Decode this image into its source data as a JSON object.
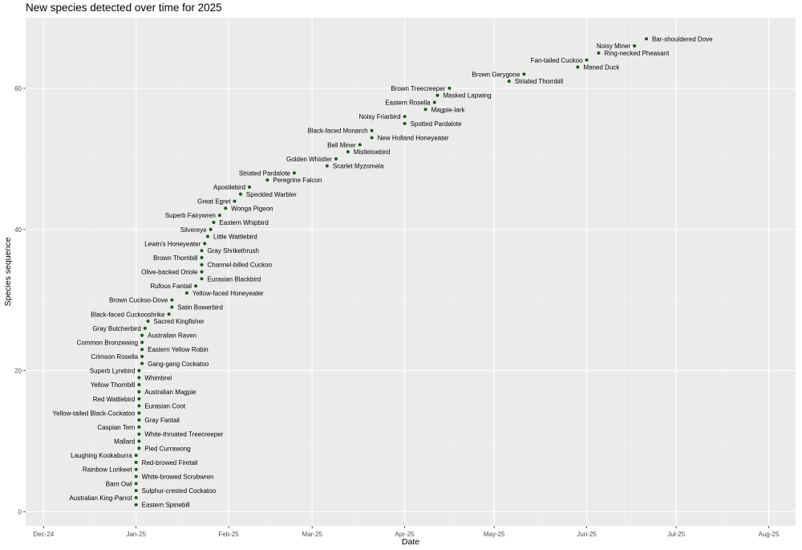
{
  "chart_data": {
    "type": "scatter",
    "title": "New species detected over time for 2025",
    "xlabel": "Date",
    "ylabel": "Species sequence",
    "x_ticks": [
      "Dec-24",
      "Jan-25",
      "Feb-25",
      "Mar-25",
      "Apr-25",
      "May-25",
      "Jun-25",
      "Jul-25",
      "Aug-25"
    ],
    "x_tick_dates": [
      "2024-12-01",
      "2025-01-01",
      "2025-02-01",
      "2025-03-01",
      "2025-04-01",
      "2025-05-01",
      "2025-06-01",
      "2025-07-01",
      "2025-08-01"
    ],
    "xlim": [
      "2024-11-25",
      "2025-08-10"
    ],
    "y_ticks": [
      0,
      20,
      40,
      60
    ],
    "ylim": [
      -2,
      70
    ],
    "grid": true,
    "point_color": "#1a5a1a",
    "panel_color": "#ebebeb",
    "points": [
      {
        "date": "2025-01-01",
        "y": 1,
        "label": "Eastern Spinebill"
      },
      {
        "date": "2025-01-01",
        "y": 2,
        "label": "Australian King-Parrot"
      },
      {
        "date": "2025-01-01",
        "y": 3,
        "label": "Sulphur-crested Cockatoo"
      },
      {
        "date": "2025-01-01",
        "y": 4,
        "label": "Barn Owl"
      },
      {
        "date": "2025-01-01",
        "y": 5,
        "label": "White-browed Scrubwren"
      },
      {
        "date": "2025-01-01",
        "y": 6,
        "label": "Rainbow Lorikeet"
      },
      {
        "date": "2025-01-01",
        "y": 7,
        "label": "Red-browed Firetail"
      },
      {
        "date": "2025-01-01",
        "y": 8,
        "label": "Laughing Kookaburra"
      },
      {
        "date": "2025-01-02",
        "y": 9,
        "label": "Pied Currawong"
      },
      {
        "date": "2025-01-02",
        "y": 10,
        "label": "Mallard"
      },
      {
        "date": "2025-01-02",
        "y": 11,
        "label": "White-throated Treecreeper"
      },
      {
        "date": "2025-01-02",
        "y": 12,
        "label": "Caspian Tern"
      },
      {
        "date": "2025-01-02",
        "y": 13,
        "label": "Gray Fantail"
      },
      {
        "date": "2025-01-02",
        "y": 14,
        "label": "Yellow-tailed Black-Cockatoo"
      },
      {
        "date": "2025-01-02",
        "y": 15,
        "label": "Eurasian Coot"
      },
      {
        "date": "2025-01-02",
        "y": 16,
        "label": "Red Wattlebird"
      },
      {
        "date": "2025-01-02",
        "y": 17,
        "label": "Australian Magpie"
      },
      {
        "date": "2025-01-02",
        "y": 18,
        "label": "Yellow Thornbill"
      },
      {
        "date": "2025-01-02",
        "y": 19,
        "label": "Whimbrel"
      },
      {
        "date": "2025-01-02",
        "y": 20,
        "label": "Superb Lyrebird"
      },
      {
        "date": "2025-01-03",
        "y": 21,
        "label": "Gang-gang Cockatoo"
      },
      {
        "date": "2025-01-03",
        "y": 22,
        "label": "Crimson Rosella"
      },
      {
        "date": "2025-01-03",
        "y": 23,
        "label": "Eastern Yellow Robin"
      },
      {
        "date": "2025-01-03",
        "y": 24,
        "label": "Common Bronzewing"
      },
      {
        "date": "2025-01-03",
        "y": 25,
        "label": "Australian Raven"
      },
      {
        "date": "2025-01-04",
        "y": 26,
        "label": "Gray Butcherbird"
      },
      {
        "date": "2025-01-05",
        "y": 27,
        "label": "Sacred Kingfisher"
      },
      {
        "date": "2025-01-12",
        "y": 28,
        "label": "Black-faced Cuckooshrike"
      },
      {
        "date": "2025-01-13",
        "y": 29,
        "label": "Satin Bowerbird"
      },
      {
        "date": "2025-01-13",
        "y": 30,
        "label": "Brown Cuckoo-Dove"
      },
      {
        "date": "2025-01-18",
        "y": 31,
        "label": "Yellow-faced Honeyeater"
      },
      {
        "date": "2025-01-21",
        "y": 32,
        "label": "Rufous Fantail"
      },
      {
        "date": "2025-01-23",
        "y": 33,
        "label": "Eurasian Blackbird"
      },
      {
        "date": "2025-01-23",
        "y": 34,
        "label": "Olive-backed Oriole"
      },
      {
        "date": "2025-01-23",
        "y": 35,
        "label": "Channel-billed Cuckoo"
      },
      {
        "date": "2025-01-23",
        "y": 36,
        "label": "Brown Thornbill"
      },
      {
        "date": "2025-01-23",
        "y": 37,
        "label": "Gray Shrikethrush"
      },
      {
        "date": "2025-01-24",
        "y": 38,
        "label": "Lewin's Honeyeater"
      },
      {
        "date": "2025-01-25",
        "y": 39,
        "label": "Little Wattlebird"
      },
      {
        "date": "2025-01-26",
        "y": 40,
        "label": "Silvereye"
      },
      {
        "date": "2025-01-27",
        "y": 41,
        "label": "Eastern Whipbird"
      },
      {
        "date": "2025-01-29",
        "y": 42,
        "label": "Superb Fairywren"
      },
      {
        "date": "2025-01-31",
        "y": 43,
        "label": "Wonga Pigeon"
      },
      {
        "date": "2025-02-03",
        "y": 44,
        "label": "Great Egret"
      },
      {
        "date": "2025-02-05",
        "y": 45,
        "label": "Speckled Warbler"
      },
      {
        "date": "2025-02-08",
        "y": 46,
        "label": "Apostlebird"
      },
      {
        "date": "2025-02-14",
        "y": 47,
        "label": "Peregrine Falcon"
      },
      {
        "date": "2025-02-23",
        "y": 48,
        "label": "Striated Pardalote"
      },
      {
        "date": "2025-03-06",
        "y": 49,
        "label": "Scarlet Myzomela"
      },
      {
        "date": "2025-03-09",
        "y": 50,
        "label": "Golden Whistler"
      },
      {
        "date": "2025-03-13",
        "y": 51,
        "label": "Mistletoebird"
      },
      {
        "date": "2025-03-17",
        "y": 52,
        "label": "Bell Miner"
      },
      {
        "date": "2025-03-21",
        "y": 53,
        "label": "New Holland Honeyeater"
      },
      {
        "date": "2025-03-21",
        "y": 54,
        "label": "Black-faced Monarch"
      },
      {
        "date": "2025-04-01",
        "y": 55,
        "label": "Spotted Pardalote"
      },
      {
        "date": "2025-04-01",
        "y": 56,
        "label": "Noisy Friarbird"
      },
      {
        "date": "2025-04-08",
        "y": 57,
        "label": "Magpie-lark"
      },
      {
        "date": "2025-04-11",
        "y": 58,
        "label": "Eastern Rosella"
      },
      {
        "date": "2025-04-12",
        "y": 59,
        "label": "Masked Lapwing"
      },
      {
        "date": "2025-04-16",
        "y": 60,
        "label": "Brown Treecreeper"
      },
      {
        "date": "2025-05-06",
        "y": 61,
        "label": "Striated Thornbill"
      },
      {
        "date": "2025-05-11",
        "y": 62,
        "label": "Brown Gerygone"
      },
      {
        "date": "2025-05-29",
        "y": 63,
        "label": "Maned Duck"
      },
      {
        "date": "2025-06-01",
        "y": 64,
        "label": "Fan-tailed Cuckoo"
      },
      {
        "date": "2025-06-05",
        "y": 65,
        "label": "Ring-necked Pheasant"
      },
      {
        "date": "2025-06-17",
        "y": 66,
        "label": "Noisy Miner"
      },
      {
        "date": "2025-06-21",
        "y": 67,
        "label": "Bar-shouldered Dove"
      }
    ]
  }
}
